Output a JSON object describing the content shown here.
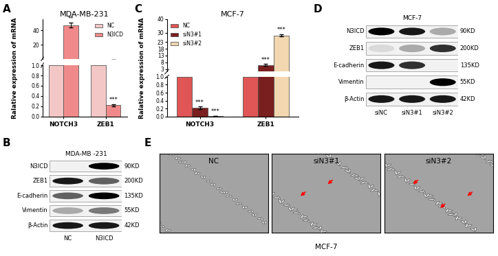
{
  "chart_data": [
    {
      "type": "bar",
      "label": "A",
      "title": "MDA-MB-231",
      "y_label": "Ralative expression of mRNA",
      "categories": [
        "NOTCH3",
        "ZEB1"
      ],
      "series": [
        {
          "name": "NC",
          "color": "#f4c7c7",
          "values": [
            1,
            1
          ],
          "errors": [
            0,
            0
          ],
          "significance": [
            null,
            null
          ]
        },
        {
          "name": "N3ICD",
          "color": "#f08a8a",
          "values": [
            47,
            0.22
          ],
          "errors": [
            3,
            0.02
          ],
          "significance": [
            "**",
            "***"
          ]
        }
      ],
      "y_segments": [
        {
          "ylim": [
            0,
            1
          ],
          "yticks": [
            {
              "value": 0,
              "label": "0.0"
            },
            0.2,
            0.4,
            0.6,
            0.8,
            {
              "value": 1,
              "label": "1.0"
            }
          ]
        },
        {
          "ylim": [
            1,
            55
          ],
          "yticks": [
            20,
            40
          ]
        }
      ],
      "legend": "upper right"
    },
    {
      "type": "bar",
      "label": "C",
      "title": "MCF-7",
      "y_label": "Ralative expression of mRNA",
      "categories": [
        "NOTCH3",
        "ZEB1"
      ],
      "series": [
        {
          "name": "NC",
          "color": "#e05555",
          "values": [
            1,
            1
          ],
          "errors": [
            0,
            0
          ],
          "significance": [
            null,
            null
          ]
        },
        {
          "name": "siN3#1",
          "color": "#7a1f1f",
          "values": [
            0.22,
            6
          ],
          "errors": [
            0.03,
            0.6
          ],
          "significance": [
            "***",
            "***"
          ]
        },
        {
          "name": "siN3#2",
          "color": "#f2d7b0",
          "values": [
            0.01,
            28
          ],
          "errors": [
            0.005,
            1
          ],
          "significance": [
            "***",
            "***"
          ]
        }
      ],
      "y_segments": [
        {
          "ylim": [
            0,
            1
          ],
          "yticks": [
            {
              "value": 0,
              "label": "0.0"
            },
            0.2,
            0.4,
            0.6,
            0.8,
            {
              "value": 1,
              "label": "1.0"
            }
          ]
        },
        {
          "ylim": [
            1,
            40
          ],
          "yticks": [
            3,
            8,
            13,
            18,
            23,
            30,
            40
          ]
        }
      ],
      "legend": "upper left"
    }
  ],
  "blots": [
    {
      "label": "B",
      "title": "MDA-MB -231",
      "lanes": [
        "NC",
        "N3ICD"
      ],
      "bands": [
        {
          "protein": "N3ICD",
          "size": "90KD",
          "intensity": [
            0.0,
            1.0
          ]
        },
        {
          "protein": "ZEB1",
          "size": "200KD",
          "intensity": [
            0.9,
            0.6
          ]
        },
        {
          "protein": "E-cadherin",
          "size": "135KD",
          "intensity": [
            0.6,
            1.0
          ]
        },
        {
          "protein": "Vimentin",
          "size": "55KD",
          "intensity": [
            0.3,
            0.5
          ]
        },
        {
          "protein": "β-Actin",
          "size": "42KD",
          "intensity": [
            0.9,
            0.9
          ]
        }
      ]
    },
    {
      "label": "D",
      "title": "MCF-7",
      "lanes": [
        "siNC",
        "siN3#1",
        "siN3#2"
      ],
      "bands": [
        {
          "protein": "N3ICD",
          "size": "90KD",
          "intensity": [
            1.0,
            0.9,
            0.3
          ]
        },
        {
          "protein": "ZEB1",
          "size": "200KD",
          "intensity": [
            0.1,
            0.3,
            0.8
          ]
        },
        {
          "protein": "E-cadherin",
          "size": "135KD",
          "intensity": [
            0.9,
            0.8,
            0.0
          ]
        },
        {
          "protein": "Vimentin",
          "size": "55KD",
          "intensity": [
            0.0,
            0.0,
            1.0
          ]
        },
        {
          "protein": "β-Actin",
          "size": "42KD",
          "intensity": [
            0.9,
            0.9,
            0.9
          ]
        }
      ]
    }
  ],
  "images": {
    "label": "E",
    "caption": "MCF-7",
    "panels": [
      {
        "name": "NC",
        "arrows": 0
      },
      {
        "name": "siN3#1",
        "arrows": 2
      },
      {
        "name": "siN3#2",
        "arrows": 3
      }
    ]
  }
}
